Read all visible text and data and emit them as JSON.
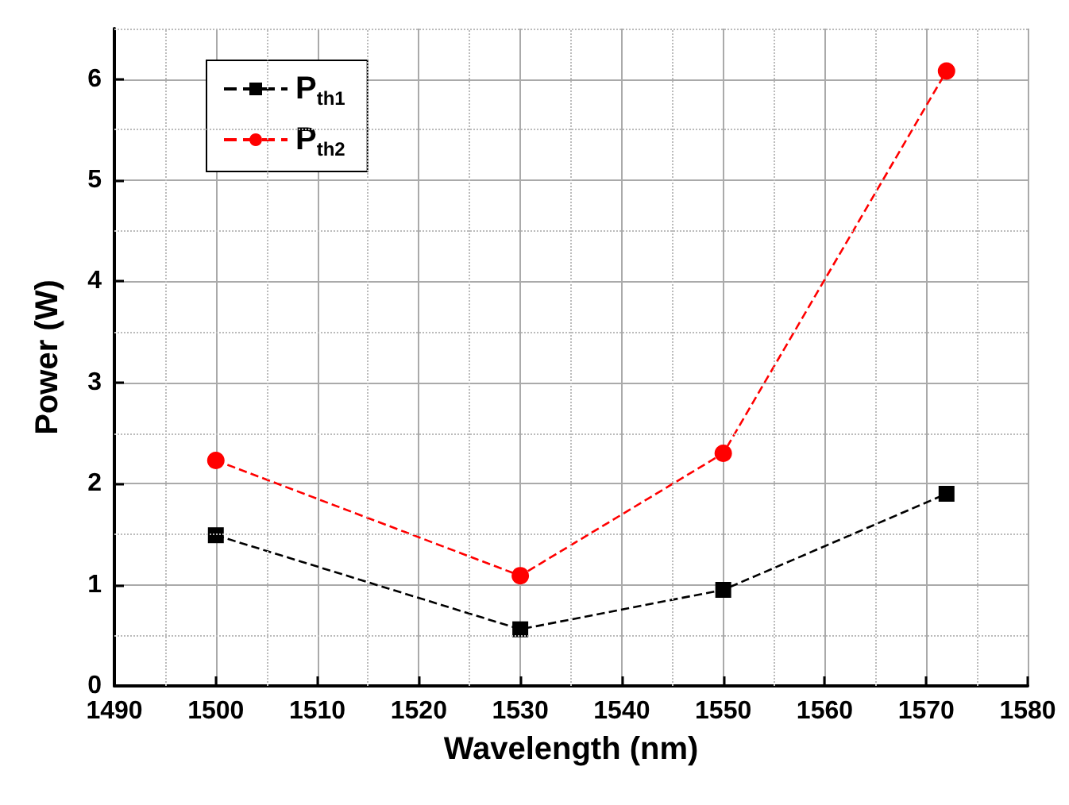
{
  "chart_data": {
    "type": "line",
    "xlabel": "Wavelength (nm)",
    "ylabel": "Power (W)",
    "xlim": [
      1490,
      1580
    ],
    "xticks": [
      1490,
      1500,
      1510,
      1520,
      1530,
      1540,
      1550,
      1560,
      1570,
      1580
    ],
    "ylim": [
      0,
      6.5
    ],
    "yticks": [
      0,
      1,
      2,
      3,
      4,
      5,
      6
    ],
    "grid": true,
    "legend": "top left",
    "line_style": "dashed",
    "series": [
      {
        "name": "P$_{th1}$",
        "color": "#000000",
        "marker": "square",
        "x": [
          1500,
          1530,
          1550,
          1572
        ],
        "values": [
          1.49,
          0.56,
          0.95,
          1.9
        ]
      },
      {
        "name": "P$_{th2}$",
        "color": "#ff0000",
        "marker": "circle",
        "x": [
          1500,
          1530,
          1550,
          1572
        ],
        "values": [
          2.23,
          1.09,
          2.3,
          6.08
        ]
      }
    ]
  }
}
